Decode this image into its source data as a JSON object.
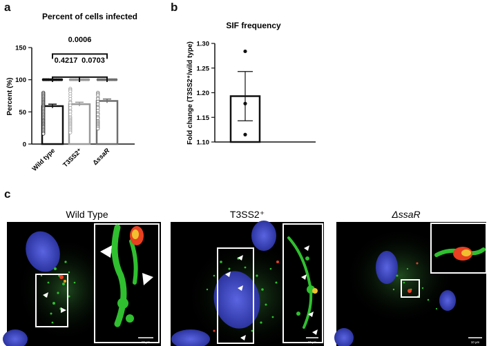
{
  "panel_letters": {
    "a": "a",
    "b": "b",
    "c": "c"
  },
  "chart_data": [
    {
      "type": "bar",
      "title": "Percent of cells infected",
      "ylabel": "Percent (%)",
      "categories": [
        "Wild type",
        "T3SS2⁺",
        "ΔssaR"
      ],
      "values": [
        59,
        62,
        67
      ],
      "errors": [
        3,
        3,
        3
      ],
      "ylim": [
        0,
        150
      ],
      "yticks": [
        0,
        50,
        100,
        150
      ],
      "bar_colors": [
        "#111111",
        "#9a9a9a",
        "#6e6e6e"
      ],
      "significance": [
        {
          "pair": [
            0,
            1
          ],
          "label": "0.4217"
        },
        {
          "pair": [
            1,
            2
          ],
          "label": "0.0703"
        },
        {
          "pair": [
            0,
            2
          ],
          "label": "0.0006"
        }
      ],
      "points": [
        [
          100,
          100,
          100,
          100,
          100,
          100,
          100,
          100,
          100,
          100,
          100,
          100,
          100,
          100,
          100,
          100,
          80,
          78,
          76,
          74,
          72,
          70,
          68,
          66,
          64,
          62,
          60,
          58,
          56,
          54,
          52,
          50,
          48,
          46,
          44,
          42,
          40,
          38,
          36,
          34,
          32,
          30,
          28,
          26,
          24,
          22,
          20,
          18,
          16
        ],
        [
          100,
          100,
          100,
          100,
          100,
          100,
          100,
          100,
          100,
          100,
          100,
          100,
          86,
          84,
          82,
          78,
          74,
          70,
          66,
          64,
          60,
          56,
          52,
          50,
          46,
          42,
          40,
          38,
          36,
          34,
          32,
          30,
          28,
          26,
          24,
          22,
          20,
          18
        ],
        [
          100,
          100,
          100,
          100,
          100,
          100,
          100,
          100,
          100,
          100,
          100,
          100,
          100,
          80,
          78,
          76,
          72,
          70,
          66,
          62,
          58,
          56,
          52,
          48,
          46,
          42,
          40,
          36,
          34,
          32,
          30,
          28,
          26,
          24
        ]
      ]
    },
    {
      "type": "bar",
      "title": "SIF frequency",
      "ylabel": "Fold change (T3SS2⁺/wild type)",
      "categories": [
        ""
      ],
      "values": [
        1.193
      ],
      "errors": [
        0.05
      ],
      "ylim": [
        1.1,
        1.3
      ],
      "yticks": [
        "1.10",
        "1.15",
        "1.20",
        "1.25",
        "1.30"
      ],
      "points": [
        1.284,
        1.178,
        1.115
      ]
    }
  ],
  "micrographs": {
    "panels": [
      {
        "label": "Wild Type",
        "scale_label": "10 μm"
      },
      {
        "label": "T3SS2⁺",
        "scale_label": "10 μm"
      },
      {
        "label": "ΔssaR",
        "scale_label": "10 μm"
      }
    ]
  },
  "colors": {
    "nucleus": "#3d48c8",
    "actin": "#2fbf2f",
    "bacteria": "#e84020",
    "background": "#000000"
  }
}
